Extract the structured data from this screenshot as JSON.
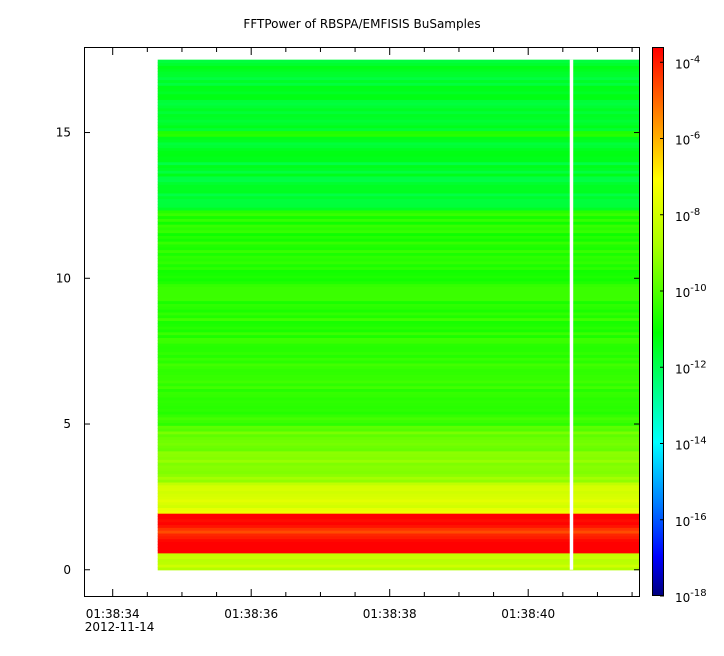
{
  "chart_data": {
    "type": "heatmap",
    "title": "FFTPower of RBSPA/EMFISIS  BuSamples",
    "xlabel": "",
    "ylabel": "",
    "x_ticks": [
      {
        "t": 34,
        "label": "01:38:34",
        "sub": "2012-11-14"
      },
      {
        "t": 36,
        "label": "01:38:36",
        "sub": ""
      },
      {
        "t": 38,
        "label": "01:38:38",
        "sub": ""
      },
      {
        "t": 40,
        "label": "01:38:40",
        "sub": ""
      }
    ],
    "xlim": [
      33.6,
      41.6
    ],
    "ylim": [
      -0.9,
      17.9
    ],
    "y_ticks": [
      0,
      5,
      10,
      15
    ],
    "data_extent": {
      "t_start": 34.65,
      "t_end": 41.6,
      "f_min": 0,
      "f_max": 17.5
    },
    "gap": {
      "t_start": 40.6,
      "t_end": 40.65
    },
    "colorbar": {
      "scale": "log",
      "range_exp": [
        -18,
        -3.6
      ],
      "ticks": [
        {
          "exp": -4,
          "label": "10",
          "sup": "-4"
        },
        {
          "exp": -6,
          "label": "10",
          "sup": "-6"
        },
        {
          "exp": -8,
          "label": "10",
          "sup": "-8"
        },
        {
          "exp": -10,
          "label": "10",
          "sup": "-10"
        },
        {
          "exp": -12,
          "label": "10",
          "sup": "-12"
        },
        {
          "exp": -14,
          "label": "10",
          "sup": "-14"
        },
        {
          "exp": -16,
          "label": "10",
          "sup": "-16"
        },
        {
          "exp": -18,
          "label": "10",
          "sup": "-18"
        }
      ]
    },
    "spectral_features": [
      {
        "name": "strong band",
        "f": 1.3,
        "level_exp": -4.5
      },
      {
        "name": "line",
        "f": 15.0,
        "level_exp": -10.5
      }
    ]
  },
  "colors": {
    "frame": "#000000",
    "gap": "#ffffff"
  }
}
